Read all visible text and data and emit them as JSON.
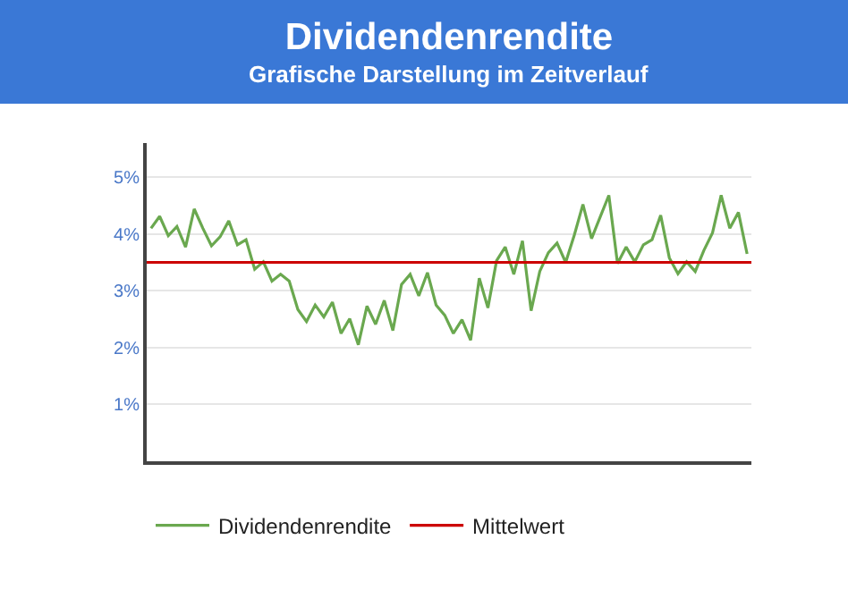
{
  "chart_data": {
    "type": "line",
    "title": "Dividendenrendite",
    "subtitle": "Grafische Darstellung im Zeitverlauf",
    "categories": [
      null,
      null,
      null,
      null,
      null,
      null,
      null,
      null,
      null,
      null,
      null,
      null,
      null,
      null,
      null,
      null,
      null,
      null,
      null,
      null,
      null,
      null,
      null,
      null,
      null,
      null,
      null,
      null,
      null,
      null,
      null,
      null,
      null,
      null,
      null,
      null,
      null,
      null,
      null,
      null,
      null,
      null,
      null,
      null,
      null,
      null,
      null,
      null,
      null,
      null,
      null,
      null,
      null,
      null,
      null,
      null,
      null,
      null,
      null,
      null,
      null,
      null,
      null,
      null,
      null,
      null,
      null,
      null,
      null,
      null
    ],
    "series": [
      {
        "name": "Dividendenrendite",
        "color": "#6aa84f",
        "values": [
          4.1,
          4.31,
          3.97,
          4.13,
          3.77,
          4.44,
          4.1,
          3.79,
          3.95,
          4.23,
          3.81,
          3.9,
          3.38,
          3.51,
          3.17,
          3.29,
          3.17,
          2.67,
          2.46,
          2.75,
          2.54,
          2.8,
          2.25,
          2.51,
          2.05,
          2.73,
          2.41,
          2.83,
          2.3,
          3.11,
          3.29,
          2.91,
          3.32,
          2.75,
          2.57,
          2.25,
          2.49,
          2.13,
          3.22,
          2.7,
          3.53,
          3.77,
          3.29,
          3.88,
          2.65,
          3.34,
          3.67,
          3.84,
          3.5,
          3.98,
          4.52,
          3.92,
          4.3,
          4.68,
          3.48,
          3.77,
          3.51,
          3.81,
          3.9,
          4.33,
          3.58,
          3.3,
          3.51,
          3.34,
          3.71,
          4.02,
          4.68,
          4.1,
          4.38,
          3.65
        ]
      }
    ],
    "ref_lines": [
      {
        "axis": "y",
        "value": 3.5,
        "label": "Mittelwert",
        "color": "#cc0000"
      }
    ],
    "ylim": [
      0,
      5.6
    ],
    "yticks": [
      {
        "value": 1,
        "label": "1%"
      },
      {
        "value": 2,
        "label": "2%"
      },
      {
        "value": 3,
        "label": "3%"
      },
      {
        "value": 4,
        "label": "4%"
      },
      {
        "value": 5,
        "label": "5%"
      }
    ],
    "grid": "y",
    "legend": "bottom",
    "marker": "none",
    "line_style": "solid"
  }
}
